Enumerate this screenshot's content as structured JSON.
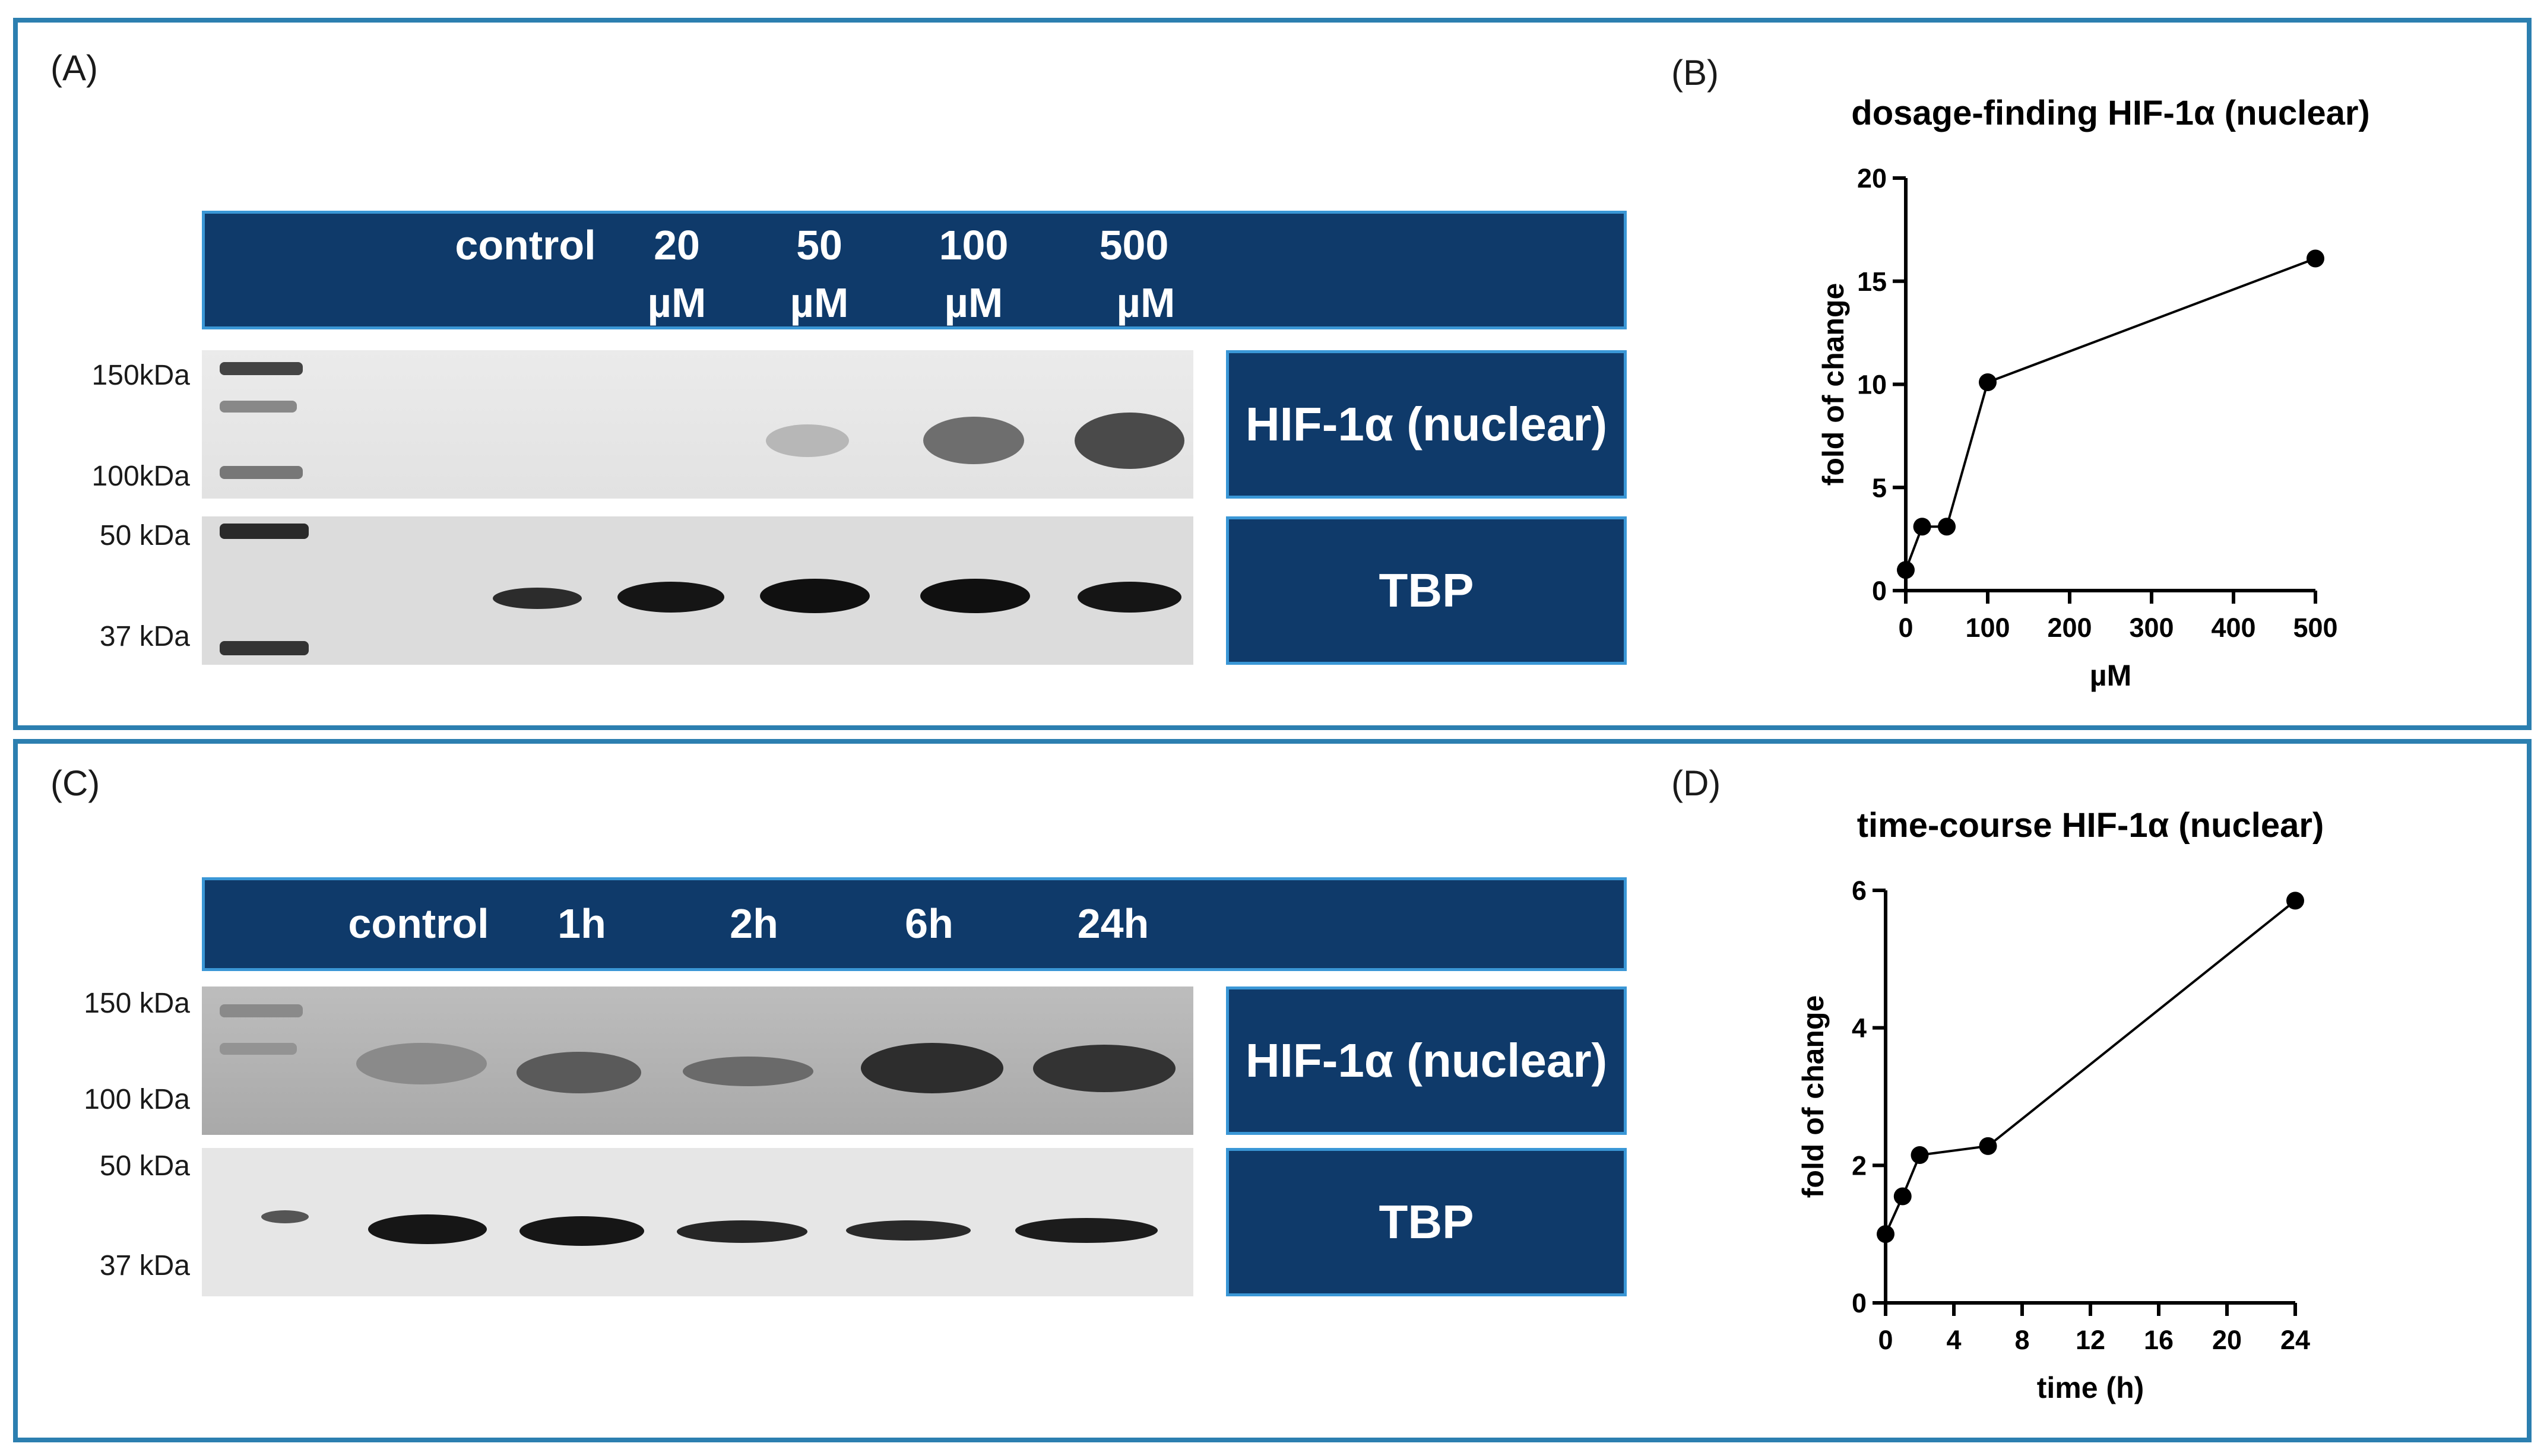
{
  "panels": {
    "a": "(A)",
    "b": "(B)",
    "c": "(C)",
    "d": "(D)"
  },
  "blot_dose": {
    "lane_labels": [
      {
        "line1": "control",
        "line2": ""
      },
      {
        "line1": "20",
        "line2": "µM"
      },
      {
        "line1": "50",
        "line2": "µM"
      },
      {
        "line1": "100",
        "line2": "µM"
      },
      {
        "line1": "500",
        "line2": "µM"
      }
    ],
    "markers": [
      "150kDa",
      "100kDa",
      "50 kDa",
      "37 kDa"
    ],
    "target_top": "HIF-1α (nuclear)",
    "target_bottom": "TBP"
  },
  "blot_time": {
    "lane_labels": [
      "control",
      "1h",
      "2h",
      "6h",
      "24h"
    ],
    "markers": [
      "150 kDa",
      "100 kDa",
      "50 kDa",
      "37 kDa"
    ],
    "target_top": "HIF-1α (nuclear)",
    "target_bottom": "TBP"
  },
  "colors": {
    "header_fill": "#0f3a6a",
    "header_border": "#3a97d6",
    "frame_border": "#2c7fb0",
    "point": "#000000"
  },
  "chart_data": [
    {
      "type": "line",
      "title": "dosage-finding HIF-1α (nuclear)",
      "xlabel": "µM",
      "ylabel": "fold of change",
      "x": [
        0,
        20,
        50,
        100,
        500
      ],
      "y": [
        1.0,
        3.1,
        3.1,
        10.1,
        16.1
      ],
      "xlim": [
        0,
        500
      ],
      "ylim": [
        0,
        20
      ],
      "xticks": [
        0,
        100,
        200,
        300,
        400,
        500
      ],
      "yticks": [
        0,
        5,
        10,
        15,
        20
      ],
      "grid": false
    },
    {
      "type": "line",
      "title": "time-course HIF-1α (nuclear)",
      "xlabel": "time (h)",
      "ylabel": "fold of change",
      "x": [
        0,
        1,
        2,
        6,
        24
      ],
      "y": [
        1.0,
        1.55,
        2.15,
        2.28,
        5.85
      ],
      "xlim": [
        0,
        24
      ],
      "ylim": [
        0,
        6
      ],
      "xticks": [
        0,
        4,
        8,
        12,
        16,
        20,
        24
      ],
      "yticks": [
        0,
        2,
        4,
        6
      ],
      "grid": false
    }
  ]
}
